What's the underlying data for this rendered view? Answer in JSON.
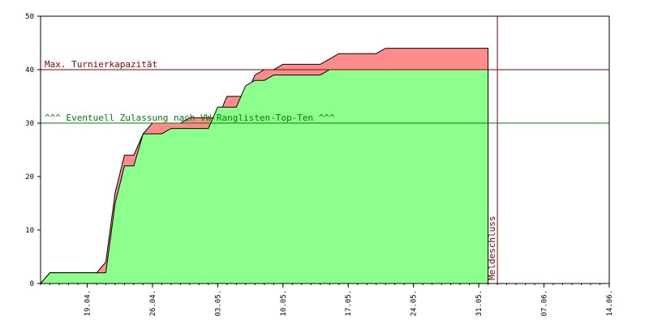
{
  "chart_data": {
    "type": "area",
    "title": "",
    "xlabel": "",
    "ylabel": "",
    "ylim": [
      0,
      50
    ],
    "yticks": [
      0,
      10,
      20,
      30,
      40,
      50
    ],
    "x_tick_labels": [
      "19.04.",
      "26.04.",
      "03.05.",
      "10.05.",
      "17.05.",
      "24.05.",
      "31.05.",
      "07.06.",
      "14.06."
    ],
    "x_start": "2025-04-14",
    "x_end": "2025-06-14",
    "grid": false,
    "series": [
      {
        "color": "#ff8c8c",
        "x": [
          "2025-04-14",
          "2025-04-15",
          "2025-04-20",
          "2025-04-21",
          "2025-04-22",
          "2025-04-23",
          "2025-04-24",
          "2025-04-25",
          "2025-04-26",
          "2025-04-27",
          "2025-04-28",
          "2025-04-29",
          "2025-04-30",
          "2025-05-01",
          "2025-05-02",
          "2025-05-03",
          "2025-05-04",
          "2025-05-05",
          "2025-05-06",
          "2025-05-07",
          "2025-05-08",
          "2025-05-09",
          "2025-05-10",
          "2025-05-11",
          "2025-05-12",
          "2025-05-13",
          "2025-05-14",
          "2025-05-15",
          "2025-05-16",
          "2025-05-17",
          "2025-05-18",
          "2025-05-19",
          "2025-05-20",
          "2025-05-21",
          "2025-05-22",
          "2025-05-23",
          "2025-05-24",
          "2025-05-25",
          "2025-05-26",
          "2025-05-27",
          "2025-05-28",
          "2025-05-29",
          "2025-05-30",
          "2025-05-31",
          "2025-06-01"
        ],
        "values": [
          0,
          2,
          2,
          4,
          17,
          24,
          24,
          28,
          30,
          30,
          30,
          30,
          31,
          31,
          31,
          31,
          35,
          35,
          35,
          39,
          40,
          40,
          41,
          41,
          41,
          41,
          41,
          42,
          43,
          43,
          43,
          43,
          43,
          44,
          44,
          44,
          44,
          44,
          44,
          44,
          44,
          44,
          44,
          44,
          44
        ]
      },
      {
        "color": "#8cff8c",
        "x": [
          "2025-04-14",
          "2025-04-15",
          "2025-04-20",
          "2025-04-21",
          "2025-04-22",
          "2025-04-23",
          "2025-04-24",
          "2025-04-25",
          "2025-04-26",
          "2025-04-27",
          "2025-04-28",
          "2025-04-29",
          "2025-04-30",
          "2025-05-01",
          "2025-05-02",
          "2025-05-03",
          "2025-05-04",
          "2025-05-05",
          "2025-05-06",
          "2025-05-07",
          "2025-05-08",
          "2025-05-09",
          "2025-05-10",
          "2025-05-11",
          "2025-05-12",
          "2025-05-13",
          "2025-05-14",
          "2025-05-15",
          "2025-05-16",
          "2025-05-17",
          "2025-05-18",
          "2025-05-19",
          "2025-05-20",
          "2025-05-21",
          "2025-05-22",
          "2025-05-23",
          "2025-05-24",
          "2025-05-25",
          "2025-05-26",
          "2025-05-27",
          "2025-05-28",
          "2025-05-29",
          "2025-05-30",
          "2025-05-31",
          "2025-06-01"
        ],
        "values": [
          0,
          2,
          2,
          2,
          15,
          22,
          22,
          28,
          28,
          28,
          29,
          29,
          29,
          29,
          29,
          33,
          33,
          33,
          37,
          38,
          38,
          39,
          39,
          39,
          39,
          39,
          39,
          40,
          40,
          40,
          40,
          40,
          40,
          40,
          40,
          40,
          40,
          40,
          40,
          40,
          40,
          40,
          40,
          40,
          40
        ]
      }
    ],
    "reference_lines": [
      {
        "y": 40,
        "label": "Max. Turnierkapazität",
        "color": "#800000"
      },
      {
        "y": 30,
        "label": "^^^ Eventuell Zulassung nach VW-Ranglisten-Top-Ten ^^^",
        "color": "#008000"
      }
    ],
    "vertical_markers": [
      {
        "x": "2025-06-02",
        "label": "Meldeschluss",
        "color": "#800000"
      }
    ]
  }
}
